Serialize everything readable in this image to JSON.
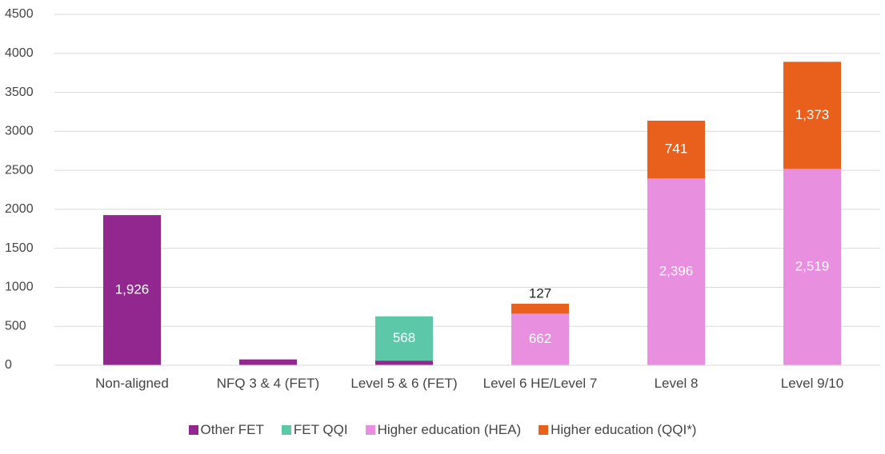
{
  "chart_data": {
    "type": "stacked_bar",
    "categories": [
      "Non-aligned",
      "NFQ 3 & 4 (FET)",
      "Level 5 & 6 (FET)",
      "Level 6 HE/Level 7",
      "Level 8",
      "Level 9/10"
    ],
    "series": [
      {
        "name": "Other FET",
        "color": "#92278f",
        "values": [
          1926,
          75,
          60,
          null,
          null,
          null
        ],
        "value_labels": [
          "1,926",
          null,
          null,
          null,
          null,
          null
        ]
      },
      {
        "name": "FET QQI",
        "color": "#5cc8a8",
        "values": [
          null,
          null,
          568,
          null,
          null,
          null
        ],
        "value_labels": [
          null,
          null,
          "568",
          null,
          null,
          null
        ]
      },
      {
        "name": "Higher education (HEA)",
        "color": "#e88fe0",
        "values": [
          null,
          null,
          null,
          662,
          2396,
          2519
        ],
        "value_labels": [
          null,
          null,
          null,
          "662",
          "2,396",
          "2,519"
        ]
      },
      {
        "name": "Higher education (QQI*)",
        "color": "#e8601c",
        "values": [
          null,
          null,
          null,
          127,
          741,
          1373
        ],
        "value_labels": [
          null,
          null,
          null,
          "127",
          "741",
          "1,373"
        ]
      }
    ],
    "ylim": [
      0,
      4500
    ],
    "yticks": [
      0,
      500,
      1000,
      1500,
      2000,
      2500,
      3000,
      3500,
      4000,
      4500
    ],
    "grid": true
  }
}
